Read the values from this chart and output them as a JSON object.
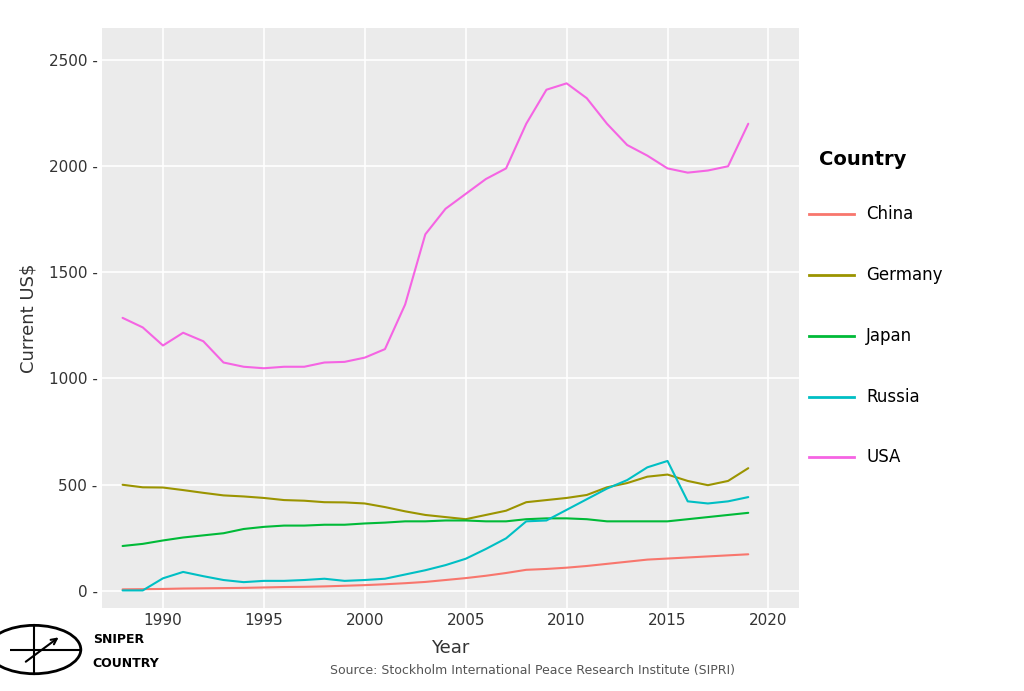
{
  "xlabel": "Year",
  "ylabel": "Current US$",
  "source": "Source: Stockholm International Peace Research Institute (SIPRI)",
  "plot_bg": "#ebebeb",
  "fig_bg": "#ffffff",
  "grid_color": "#ffffff",
  "years": [
    1988,
    1989,
    1990,
    1991,
    1992,
    1993,
    1994,
    1995,
    1996,
    1997,
    1998,
    1999,
    2000,
    2001,
    2002,
    2003,
    2004,
    2005,
    2006,
    2007,
    2008,
    2009,
    2010,
    2011,
    2012,
    2013,
    2014,
    2015,
    2016,
    2017,
    2018,
    2019
  ],
  "China": [
    8,
    9,
    10,
    12,
    13,
    14,
    15,
    17,
    19,
    20,
    22,
    25,
    28,
    32,
    37,
    43,
    52,
    61,
    72,
    85,
    100,
    104,
    110,
    118,
    128,
    138,
    148,
    153,
    158,
    163,
    168,
    173
  ],
  "Germany": [
    500,
    488,
    487,
    475,
    462,
    450,
    445,
    438,
    428,
    425,
    418,
    417,
    412,
    395,
    375,
    358,
    348,
    338,
    358,
    378,
    418,
    428,
    438,
    452,
    488,
    508,
    538,
    548,
    518,
    498,
    518,
    578
  ],
  "Japan": [
    212,
    222,
    238,
    252,
    262,
    272,
    292,
    302,
    308,
    308,
    312,
    312,
    318,
    322,
    328,
    328,
    332,
    332,
    328,
    328,
    338,
    342,
    342,
    338,
    328,
    328,
    328,
    328,
    338,
    348,
    358,
    368
  ],
  "Russia": [
    3,
    3,
    60,
    90,
    70,
    52,
    42,
    48,
    48,
    52,
    58,
    48,
    52,
    58,
    78,
    98,
    122,
    152,
    198,
    248,
    328,
    332,
    382,
    432,
    482,
    522,
    582,
    612,
    422,
    412,
    422,
    442
  ],
  "USA": [
    1285,
    1240,
    1155,
    1215,
    1175,
    1075,
    1055,
    1048,
    1055,
    1055,
    1075,
    1078,
    1098,
    1138,
    1348,
    1678,
    1798,
    1868,
    1938,
    1988,
    2198,
    2358,
    2388,
    2318,
    2198,
    2098,
    2048,
    1988,
    1968,
    1978,
    1998,
    2198
  ],
  "colors": {
    "China": "#f8766d",
    "Germany": "#9b9400",
    "Japan": "#00ba38",
    "Russia": "#00bfc4",
    "USA": "#f564e3"
  },
  "ylim": [
    -80,
    2650
  ],
  "yticks": [
    0,
    500,
    1000,
    1500,
    2000,
    2500
  ],
  "ytick_labels": [
    "0 -",
    "500 -",
    "1000 -",
    "1500 -",
    "2000 -",
    "2500 -"
  ],
  "xticks": [
    1990,
    1995,
    2000,
    2005,
    2010,
    2015,
    2020
  ],
  "xlim": [
    1987.0,
    2021.5
  ],
  "legend_title": "Country",
  "legend_bg": "#f0f0f0"
}
